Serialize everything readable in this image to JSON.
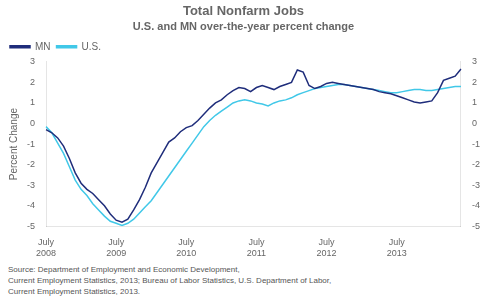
{
  "chart_data": {
    "type": "line",
    "title": "Total Nonfarm Jobs",
    "subtitle": "U.S. and MN over-the-year percent change",
    "ylabel": "Percent Change",
    "source": "Source: Department of Employment and Economic Development,\nCurrent Employment Statistics, 2013; Bureau of Labor Statistics, U.S. Department of Labor,\nCurrent Employment Statistics, 2013.",
    "categories": [
      "July\n2008",
      null,
      null,
      null,
      null,
      null,
      null,
      null,
      null,
      null,
      null,
      null,
      "July\n2009",
      null,
      null,
      null,
      null,
      null,
      null,
      null,
      null,
      null,
      null,
      null,
      "July\n2010",
      null,
      null,
      null,
      null,
      null,
      null,
      null,
      null,
      null,
      null,
      null,
      "July\n2011",
      null,
      null,
      null,
      null,
      null,
      null,
      null,
      null,
      null,
      null,
      null,
      "July\n2012",
      null,
      null,
      null,
      null,
      null,
      null,
      null,
      null,
      null,
      null,
      null,
      "July\n2013",
      null,
      null,
      null,
      null,
      null,
      null,
      null,
      null,
      null,
      null,
      null
    ],
    "series": [
      {
        "name": "MN",
        "color": "#1f2d7b",
        "values": [
          -0.3,
          -0.45,
          -0.7,
          -1.1,
          -1.7,
          -2.4,
          -2.9,
          -3.2,
          -3.4,
          -3.7,
          -4.0,
          -4.4,
          -4.7,
          -4.8,
          -4.65,
          -4.2,
          -3.7,
          -3.1,
          -2.4,
          -1.9,
          -1.4,
          -0.9,
          -0.7,
          -0.4,
          -0.2,
          -0.1,
          0.15,
          0.45,
          0.75,
          1.0,
          1.15,
          1.4,
          1.6,
          1.75,
          1.7,
          1.55,
          1.75,
          1.85,
          1.75,
          1.65,
          1.8,
          1.9,
          2.0,
          2.6,
          2.5,
          1.85,
          1.7,
          1.8,
          1.95,
          2.0,
          1.95,
          1.9,
          1.85,
          1.8,
          1.75,
          1.7,
          1.65,
          1.55,
          1.5,
          1.45,
          1.35,
          1.25,
          1.15,
          1.05,
          1.0,
          1.05,
          1.1,
          1.5,
          2.1,
          2.2,
          2.3,
          2.65
        ]
      },
      {
        "name": "U.S.",
        "color": "#41c8e8",
        "values": [
          -0.15,
          -0.45,
          -0.95,
          -1.45,
          -2.1,
          -2.75,
          -3.2,
          -3.5,
          -3.9,
          -4.2,
          -4.5,
          -4.75,
          -4.85,
          -4.95,
          -4.85,
          -4.65,
          -4.35,
          -4.05,
          -3.75,
          -3.35,
          -2.95,
          -2.55,
          -2.15,
          -1.75,
          -1.35,
          -0.95,
          -0.55,
          -0.15,
          0.15,
          0.4,
          0.6,
          0.8,
          1.0,
          1.1,
          1.15,
          1.1,
          1.0,
          0.95,
          0.85,
          1.0,
          1.1,
          1.15,
          1.25,
          1.4,
          1.5,
          1.6,
          1.7,
          1.75,
          1.8,
          1.85,
          1.9,
          1.9,
          1.85,
          1.8,
          1.75,
          1.7,
          1.65,
          1.6,
          1.55,
          1.5,
          1.5,
          1.55,
          1.6,
          1.65,
          1.65,
          1.6,
          1.6,
          1.65,
          1.7,
          1.75,
          1.8,
          1.8
        ]
      }
    ],
    "ylim": [
      -5,
      3
    ],
    "yticks": [
      -5,
      -4,
      -3,
      -2,
      -1,
      0,
      1,
      2,
      3
    ],
    "y2lim": [
      -5,
      3
    ],
    "y2ticks": [
      -5,
      -4,
      -3,
      -2,
      -1,
      0,
      1,
      2,
      3
    ],
    "grid": false,
    "legend": "upper left"
  }
}
